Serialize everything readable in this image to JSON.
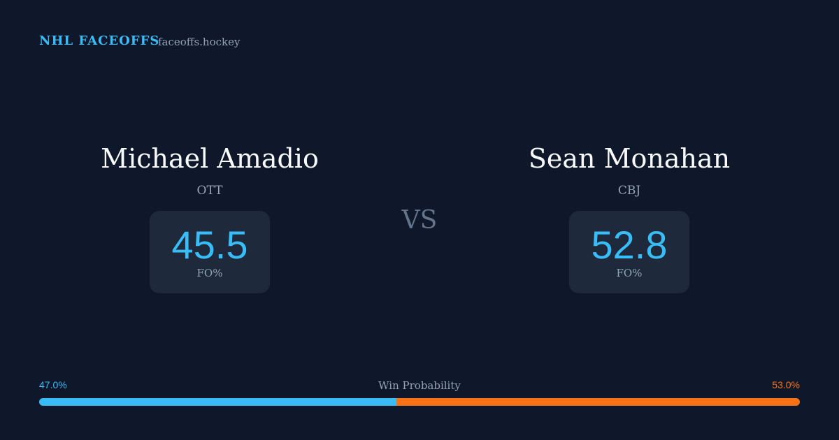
{
  "header": {
    "brand": "NHL FACEOFFS",
    "site": "faceoffs.hockey"
  },
  "players": [
    {
      "name": "Michael Amadio",
      "team": "OTT",
      "fo_pct": 45.5,
      "stat_label": "FO%"
    },
    {
      "name": "Sean Monahan",
      "team": "CBJ",
      "fo_pct": 52.8,
      "stat_label": "FO%"
    }
  ],
  "versus": "VS",
  "win_probability": {
    "label": "Win Probability",
    "home": {
      "value": 47.0,
      "label": "47.0%",
      "color": "#38bdf8"
    },
    "away": {
      "value": 53.0,
      "label": "53.0%",
      "color": "#f97316"
    }
  }
}
